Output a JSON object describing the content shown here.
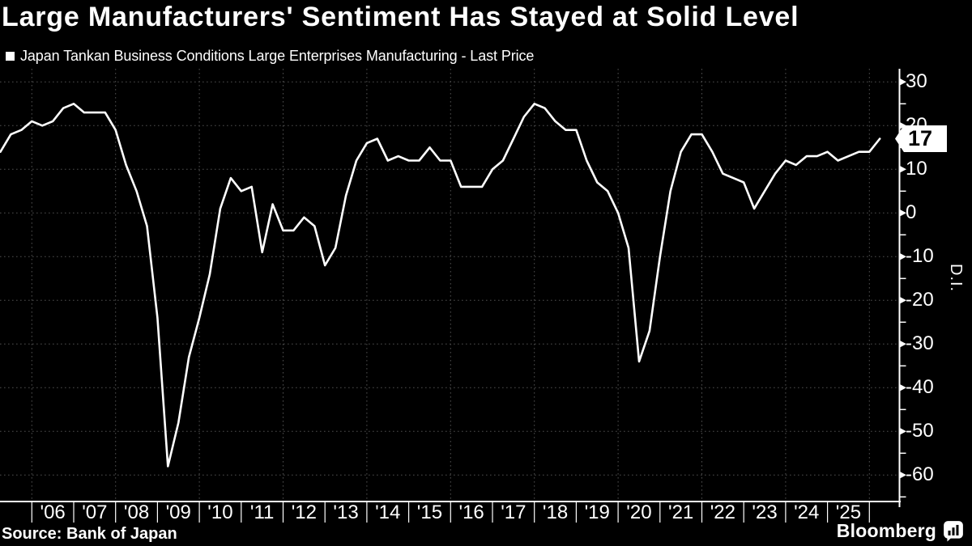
{
  "title": "Large Manufacturers' Sentiment Has Stayed at Solid Level",
  "legend": {
    "label": "Japan Tankan Business Conditions Large Enterprises Manufacturing - Last Price"
  },
  "source_label": "Source: Bank of Japan",
  "brand": {
    "name": "Bloomberg",
    "icon": "bloomberg-bars-icon"
  },
  "last_price_label": "17",
  "colors": {
    "background": "#000000",
    "line": "#ffffff",
    "grid": "#4f4f4f",
    "text": "#ffffff",
    "badge_bg": "#ffffff",
    "badge_text": "#000000"
  },
  "chart_data": {
    "type": "line",
    "title": "Large Manufacturers' Sentiment Has Stayed at Solid Level",
    "ylabel": "D.I.",
    "ylim": [
      -66,
      33
    ],
    "x_domain_years": [
      2005.0,
      2026.7
    ],
    "grid": "dotted",
    "legend_position": "top-left",
    "last_value": 17,
    "y_ticks_major": [
      30,
      20,
      10,
      0,
      -10,
      -20,
      -30,
      -40,
      -50,
      -60
    ],
    "y_ticks_minor": [
      25,
      15,
      5,
      -5,
      -15,
      -25,
      -35,
      -45,
      -55,
      -65
    ],
    "x_year_labels": [
      "'06",
      "'07",
      "'08",
      "'09",
      "'10",
      "'11",
      "'12",
      "'13",
      "'14",
      "'15",
      "'16",
      "'17",
      "'18",
      "'19",
      "'20",
      "'21",
      "'22",
      "'23",
      "'24",
      "'25"
    ],
    "x_first_labeled_year": 2006,
    "x_gridline_years": [
      2006,
      2008,
      2010,
      2012,
      2014,
      2016,
      2018,
      2020,
      2022,
      2024,
      2026
    ],
    "series": [
      {
        "name": "Japan Tankan Business Conditions Large Enterprises Manufacturing - Last Price",
        "frequency": "quarterly",
        "start_year": 2005,
        "start_quarter": 1,
        "values": [
          14,
          18,
          19,
          21,
          20,
          21,
          24,
          25,
          23,
          23,
          23,
          19,
          11,
          5,
          -3,
          -24,
          -58,
          -48,
          -33,
          -24,
          -14,
          1,
          8,
          5,
          6,
          -9,
          2,
          -4,
          -4,
          -1,
          -3,
          -12,
          -8,
          4,
          12,
          16,
          17,
          12,
          13,
          12,
          12,
          15,
          12,
          12,
          6,
          6,
          6,
          10,
          12,
          17,
          22,
          25,
          24,
          21,
          19,
          19,
          12,
          7,
          5,
          0,
          -8,
          -34,
          -27,
          -10,
          5,
          14,
          18,
          18,
          14,
          9,
          8,
          7,
          1,
          5,
          9,
          12,
          11,
          13,
          13,
          14,
          12,
          13,
          14,
          14,
          17
        ]
      }
    ]
  }
}
